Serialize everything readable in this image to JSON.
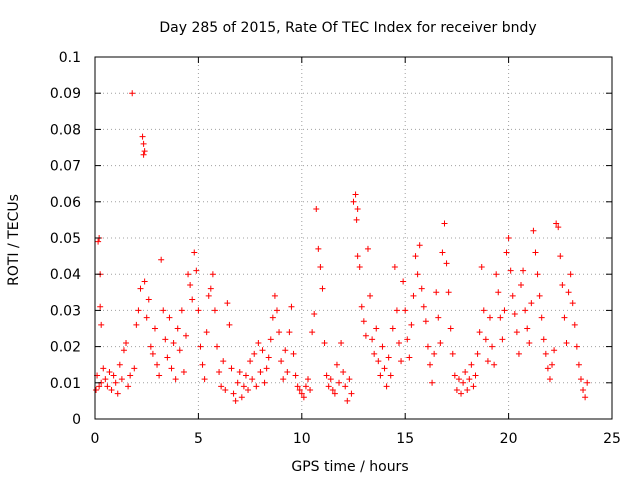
{
  "chart_data": {
    "type": "scatter",
    "title": "Day 285 of 2015, Rate Of TEC Index for receiver bndy",
    "xlabel": "GPS time / hours",
    "ylabel": "ROTI / TECUs",
    "xlim": [
      0,
      25
    ],
    "ylim": [
      0,
      0.1
    ],
    "x_ticks": [
      0,
      5,
      10,
      15,
      20,
      25
    ],
    "x_tick_labels": [
      "0",
      "5",
      "10",
      "15",
      "20",
      "25"
    ],
    "y_ticks": [
      0,
      0.01,
      0.02,
      0.03,
      0.04,
      0.05,
      0.06,
      0.07,
      0.08,
      0.09,
      0.1
    ],
    "y_tick_labels": [
      "0",
      "0.01",
      "0.02",
      "0.03",
      "0.04",
      "0.05",
      "0.06",
      "0.07",
      "0.08",
      "0.09",
      "0.1"
    ],
    "grid": true,
    "marker": "+",
    "series": [
      {
        "name": "ROTI",
        "color": "#ff0000",
        "points": [
          [
            0.05,
            0.008
          ],
          [
            0.1,
            0.012
          ],
          [
            0.15,
            0.049
          ],
          [
            0.2,
            0.05
          ],
          [
            0.25,
            0.04
          ],
          [
            0.25,
            0.031
          ],
          [
            0.3,
            0.026
          ],
          [
            0.2,
            0.009
          ],
          [
            0.3,
            0.01
          ],
          [
            0.4,
            0.014
          ],
          [
            0.5,
            0.011
          ],
          [
            0.6,
            0.009
          ],
          [
            0.7,
            0.013
          ],
          [
            0.8,
            0.008
          ],
          [
            0.9,
            0.012
          ],
          [
            1.0,
            0.01
          ],
          [
            1.1,
            0.007
          ],
          [
            1.2,
            0.015
          ],
          [
            1.3,
            0.011
          ],
          [
            1.4,
            0.019
          ],
          [
            1.5,
            0.021
          ],
          [
            1.6,
            0.009
          ],
          [
            1.7,
            0.012
          ],
          [
            1.8,
            0.09
          ],
          [
            1.9,
            0.014
          ],
          [
            2.0,
            0.026
          ],
          [
            2.1,
            0.03
          ],
          [
            2.2,
            0.036
          ],
          [
            2.3,
            0.078
          ],
          [
            2.35,
            0.076
          ],
          [
            2.4,
            0.074
          ],
          [
            2.35,
            0.073
          ],
          [
            2.4,
            0.038
          ],
          [
            2.5,
            0.028
          ],
          [
            2.6,
            0.033
          ],
          [
            2.7,
            0.02
          ],
          [
            2.8,
            0.018
          ],
          [
            2.9,
            0.025
          ],
          [
            3.0,
            0.015
          ],
          [
            3.1,
            0.012
          ],
          [
            3.2,
            0.044
          ],
          [
            3.3,
            0.03
          ],
          [
            3.4,
            0.022
          ],
          [
            3.5,
            0.017
          ],
          [
            3.6,
            0.028
          ],
          [
            3.7,
            0.014
          ],
          [
            3.8,
            0.021
          ],
          [
            3.9,
            0.011
          ],
          [
            4.0,
            0.025
          ],
          [
            4.1,
            0.019
          ],
          [
            4.2,
            0.03
          ],
          [
            4.3,
            0.013
          ],
          [
            4.4,
            0.023
          ],
          [
            4.5,
            0.04
          ],
          [
            4.6,
            0.037
          ],
          [
            4.7,
            0.033
          ],
          [
            4.8,
            0.046
          ],
          [
            4.9,
            0.041
          ],
          [
            5.0,
            0.03
          ],
          [
            5.1,
            0.02
          ],
          [
            5.2,
            0.015
          ],
          [
            5.3,
            0.011
          ],
          [
            5.4,
            0.024
          ],
          [
            5.5,
            0.034
          ],
          [
            5.6,
            0.036
          ],
          [
            5.7,
            0.04
          ],
          [
            5.8,
            0.03
          ],
          [
            5.9,
            0.02
          ],
          [
            6.0,
            0.013
          ],
          [
            6.1,
            0.009
          ],
          [
            6.2,
            0.016
          ],
          [
            6.3,
            0.008
          ],
          [
            6.4,
            0.032
          ],
          [
            6.5,
            0.026
          ],
          [
            6.6,
            0.014
          ],
          [
            6.7,
            0.007
          ],
          [
            6.8,
            0.005
          ],
          [
            6.9,
            0.01
          ],
          [
            7.0,
            0.013
          ],
          [
            7.1,
            0.006
          ],
          [
            7.2,
            0.009
          ],
          [
            7.3,
            0.012
          ],
          [
            7.4,
            0.008
          ],
          [
            7.5,
            0.016
          ],
          [
            7.6,
            0.011
          ],
          [
            7.7,
            0.018
          ],
          [
            7.8,
            0.009
          ],
          [
            7.9,
            0.021
          ],
          [
            8.0,
            0.013
          ],
          [
            8.1,
            0.019
          ],
          [
            8.2,
            0.01
          ],
          [
            8.3,
            0.014
          ],
          [
            8.4,
            0.017
          ],
          [
            8.5,
            0.022
          ],
          [
            8.6,
            0.028
          ],
          [
            8.7,
            0.034
          ],
          [
            8.8,
            0.03
          ],
          [
            8.9,
            0.024
          ],
          [
            9.0,
            0.016
          ],
          [
            9.1,
            0.011
          ],
          [
            9.2,
            0.019
          ],
          [
            9.3,
            0.013
          ],
          [
            9.4,
            0.024
          ],
          [
            9.5,
            0.031
          ],
          [
            9.6,
            0.018
          ],
          [
            9.7,
            0.012
          ],
          [
            9.8,
            0.009
          ],
          [
            9.9,
            0.008
          ],
          [
            10.0,
            0.007
          ],
          [
            10.1,
            0.006
          ],
          [
            10.2,
            0.009
          ],
          [
            10.3,
            0.011
          ],
          [
            10.4,
            0.008
          ],
          [
            10.5,
            0.024
          ],
          [
            10.6,
            0.029
          ],
          [
            10.7,
            0.058
          ],
          [
            10.8,
            0.047
          ],
          [
            10.9,
            0.042
          ],
          [
            11.0,
            0.036
          ],
          [
            11.1,
            0.021
          ],
          [
            11.2,
            0.012
          ],
          [
            11.3,
            0.009
          ],
          [
            11.4,
            0.011
          ],
          [
            11.5,
            0.008
          ],
          [
            11.6,
            0.007
          ],
          [
            11.7,
            0.015
          ],
          [
            11.8,
            0.01
          ],
          [
            11.9,
            0.021
          ],
          [
            12.0,
            0.013
          ],
          [
            12.1,
            0.009
          ],
          [
            12.2,
            0.005
          ],
          [
            12.3,
            0.011
          ],
          [
            12.4,
            0.007
          ],
          [
            12.5,
            0.06
          ],
          [
            12.6,
            0.062
          ],
          [
            12.65,
            0.055
          ],
          [
            12.7,
            0.058
          ],
          [
            12.7,
            0.045
          ],
          [
            12.8,
            0.042
          ],
          [
            12.9,
            0.031
          ],
          [
            13.0,
            0.027
          ],
          [
            13.1,
            0.023
          ],
          [
            13.2,
            0.047
          ],
          [
            13.3,
            0.034
          ],
          [
            13.4,
            0.022
          ],
          [
            13.5,
            0.018
          ],
          [
            13.6,
            0.025
          ],
          [
            13.7,
            0.016
          ],
          [
            13.8,
            0.012
          ],
          [
            13.9,
            0.02
          ],
          [
            14.0,
            0.014
          ],
          [
            14.1,
            0.009
          ],
          [
            14.2,
            0.017
          ],
          [
            14.3,
            0.012
          ],
          [
            14.4,
            0.025
          ],
          [
            14.5,
            0.042
          ],
          [
            14.6,
            0.03
          ],
          [
            14.7,
            0.021
          ],
          [
            14.8,
            0.016
          ],
          [
            14.9,
            0.038
          ],
          [
            15.0,
            0.03
          ],
          [
            15.1,
            0.022
          ],
          [
            15.2,
            0.017
          ],
          [
            15.3,
            0.026
          ],
          [
            15.4,
            0.034
          ],
          [
            15.5,
            0.045
          ],
          [
            15.6,
            0.04
          ],
          [
            15.7,
            0.048
          ],
          [
            15.8,
            0.036
          ],
          [
            15.9,
            0.031
          ],
          [
            16.0,
            0.027
          ],
          [
            16.1,
            0.02
          ],
          [
            16.2,
            0.015
          ],
          [
            16.3,
            0.01
          ],
          [
            16.4,
            0.018
          ],
          [
            16.5,
            0.035
          ],
          [
            16.6,
            0.028
          ],
          [
            16.7,
            0.021
          ],
          [
            16.8,
            0.046
          ],
          [
            16.9,
            0.054
          ],
          [
            17.0,
            0.043
          ],
          [
            17.1,
            0.035
          ],
          [
            17.2,
            0.025
          ],
          [
            17.3,
            0.018
          ],
          [
            17.4,
            0.012
          ],
          [
            17.5,
            0.008
          ],
          [
            17.6,
            0.011
          ],
          [
            17.7,
            0.007
          ],
          [
            17.8,
            0.01
          ],
          [
            17.9,
            0.013
          ],
          [
            18.0,
            0.008
          ],
          [
            18.1,
            0.011
          ],
          [
            18.2,
            0.015
          ],
          [
            18.3,
            0.009
          ],
          [
            18.4,
            0.012
          ],
          [
            18.5,
            0.018
          ],
          [
            18.6,
            0.024
          ],
          [
            18.7,
            0.042
          ],
          [
            18.8,
            0.03
          ],
          [
            18.9,
            0.022
          ],
          [
            19.0,
            0.016
          ],
          [
            19.1,
            0.028
          ],
          [
            19.2,
            0.02
          ],
          [
            19.3,
            0.015
          ],
          [
            19.4,
            0.04
          ],
          [
            19.5,
            0.035
          ],
          [
            19.6,
            0.028
          ],
          [
            19.7,
            0.022
          ],
          [
            19.8,
            0.03
          ],
          [
            19.9,
            0.046
          ],
          [
            20.0,
            0.05
          ],
          [
            20.1,
            0.041
          ],
          [
            20.2,
            0.034
          ],
          [
            20.3,
            0.029
          ],
          [
            20.4,
            0.024
          ],
          [
            20.5,
            0.018
          ],
          [
            20.6,
            0.037
          ],
          [
            20.7,
            0.041
          ],
          [
            20.8,
            0.03
          ],
          [
            20.9,
            0.025
          ],
          [
            21.0,
            0.021
          ],
          [
            21.1,
            0.032
          ],
          [
            21.2,
            0.052
          ],
          [
            21.3,
            0.046
          ],
          [
            21.4,
            0.04
          ],
          [
            21.5,
            0.034
          ],
          [
            21.6,
            0.028
          ],
          [
            21.7,
            0.022
          ],
          [
            21.8,
            0.018
          ],
          [
            21.9,
            0.014
          ],
          [
            22.0,
            0.011
          ],
          [
            22.1,
            0.015
          ],
          [
            22.2,
            0.019
          ],
          [
            22.3,
            0.054
          ],
          [
            22.4,
            0.053
          ],
          [
            22.5,
            0.045
          ],
          [
            22.6,
            0.037
          ],
          [
            22.7,
            0.028
          ],
          [
            22.8,
            0.021
          ],
          [
            22.9,
            0.035
          ],
          [
            23.0,
            0.04
          ],
          [
            23.1,
            0.032
          ],
          [
            23.2,
            0.026
          ],
          [
            23.3,
            0.02
          ],
          [
            23.4,
            0.015
          ],
          [
            23.5,
            0.011
          ],
          [
            23.6,
            0.008
          ],
          [
            23.7,
            0.006
          ],
          [
            23.8,
            0.01
          ]
        ]
      }
    ]
  }
}
